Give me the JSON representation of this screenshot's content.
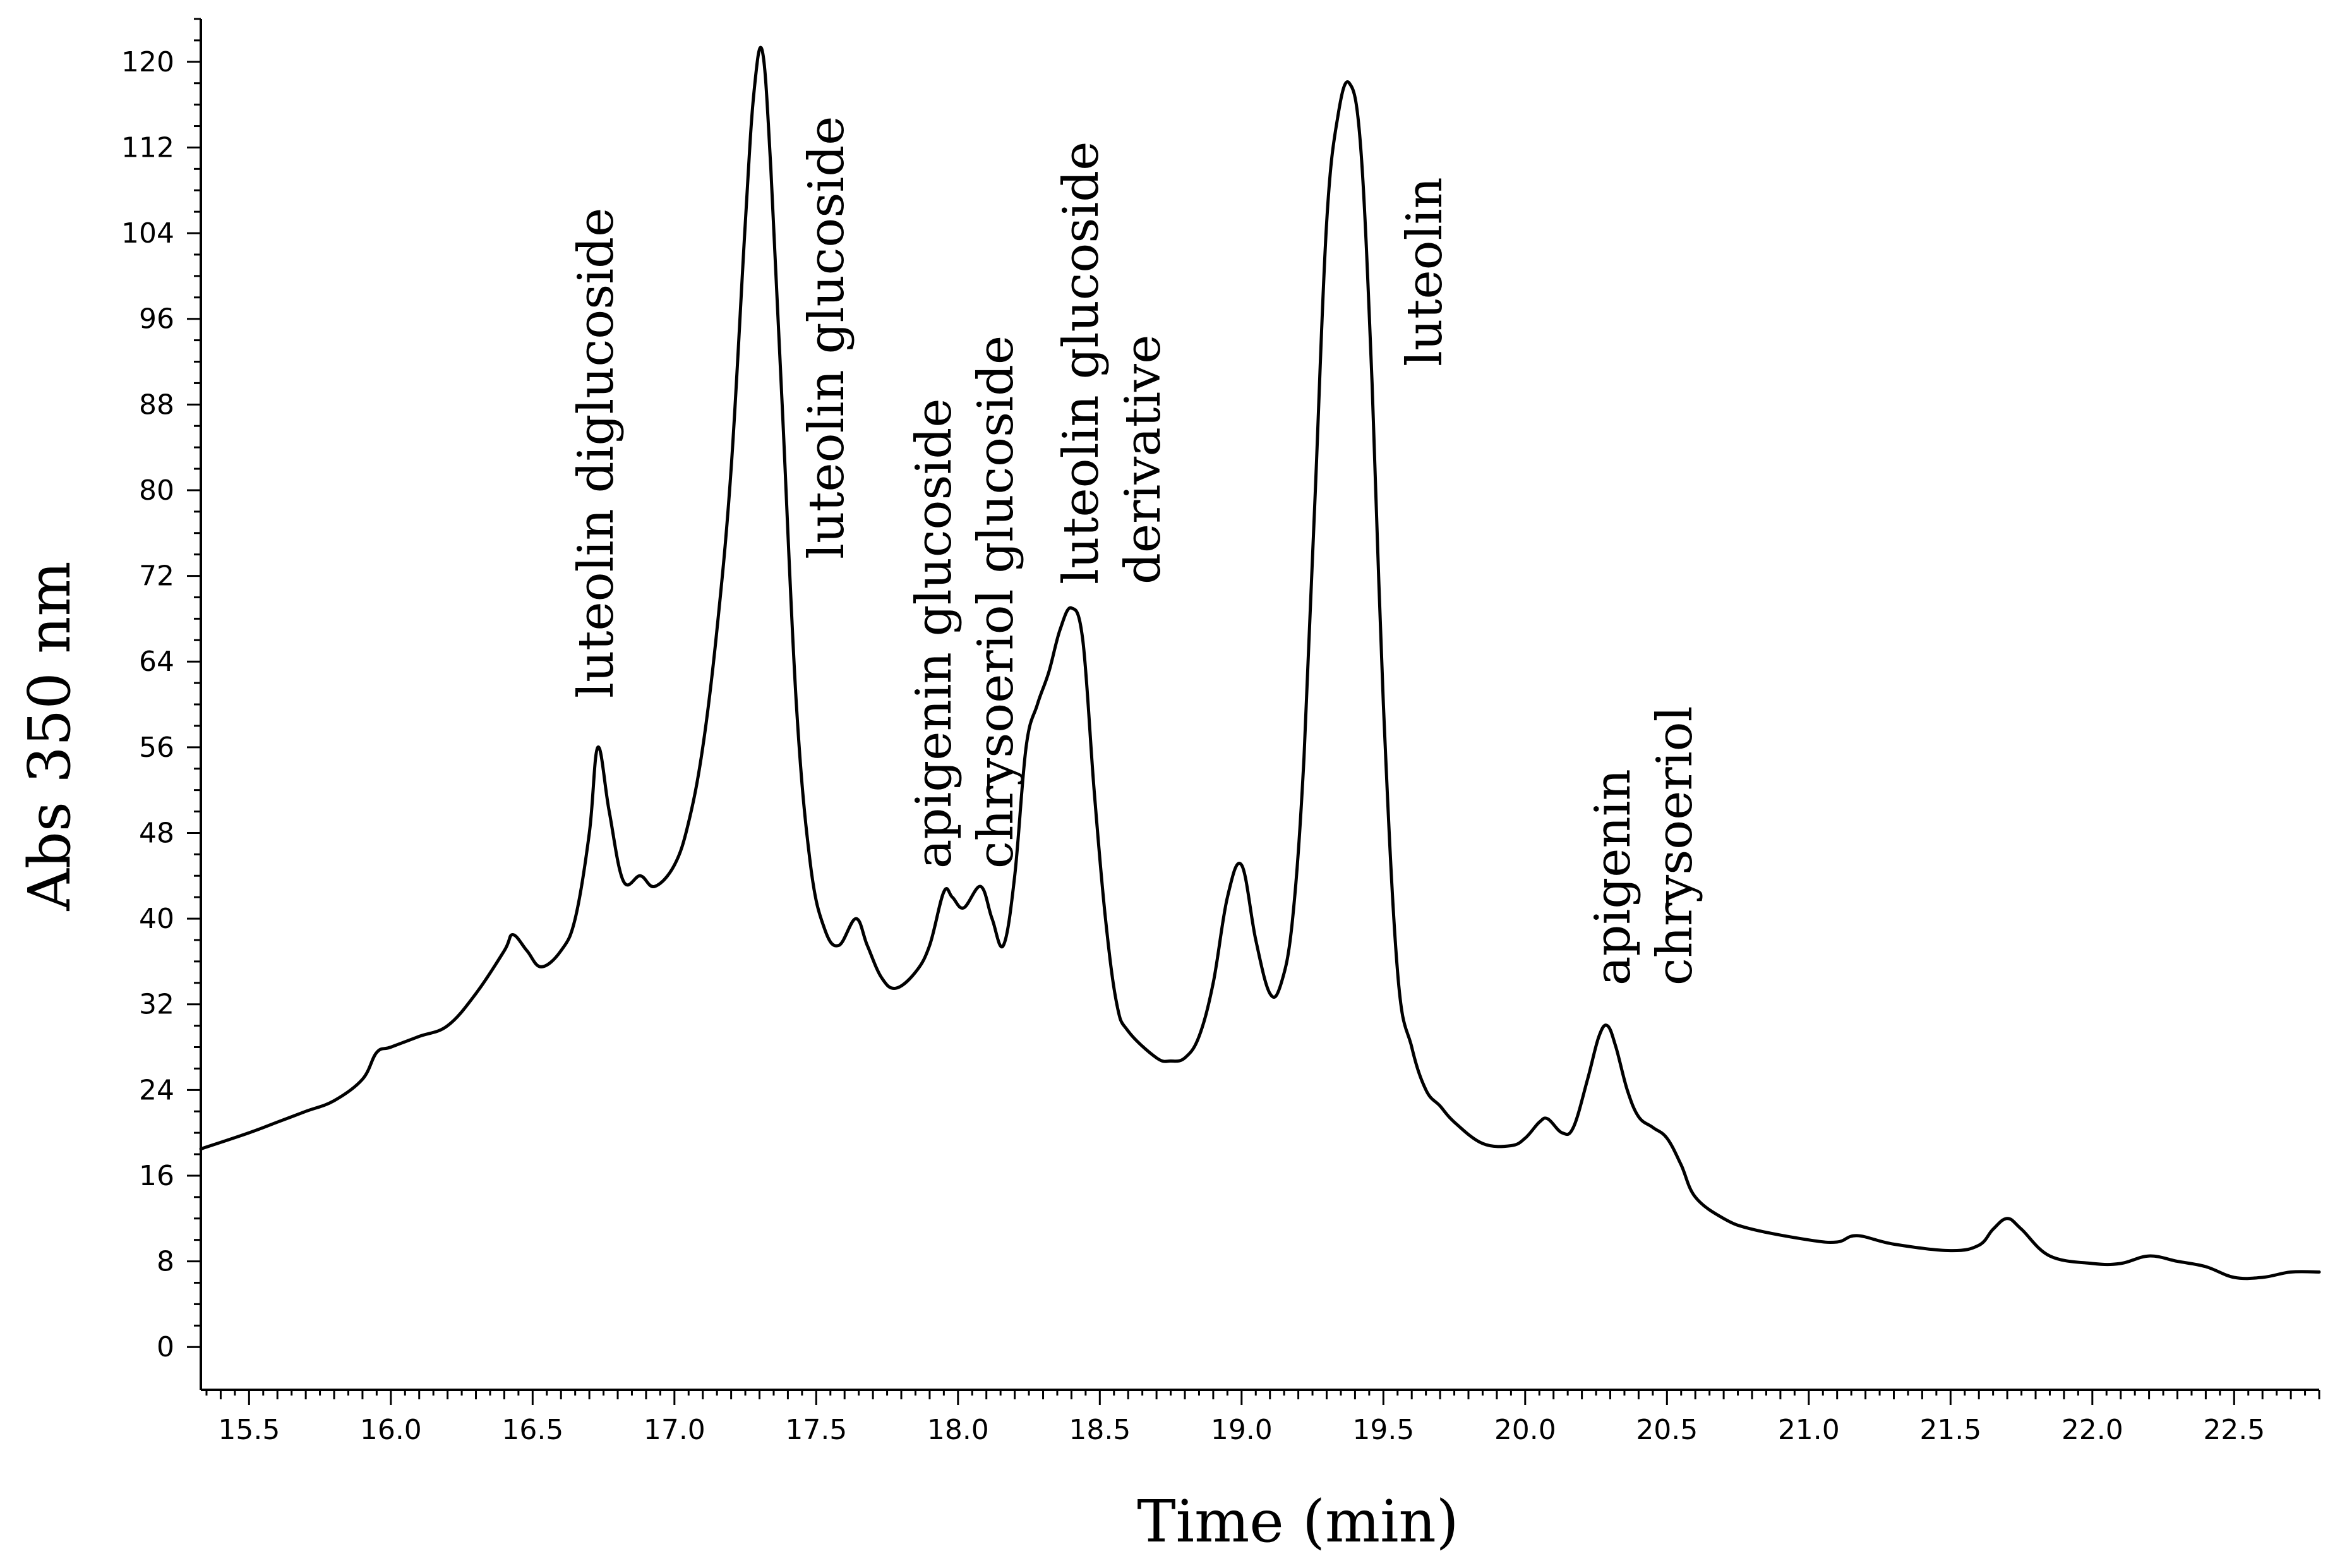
{
  "chart_data": {
    "type": "line",
    "title": "",
    "xlabel": "Time (min)",
    "ylabel": "Abs 350 nm",
    "xlim": [
      15.33,
      22.8
    ],
    "ylim": [
      -4,
      124
    ],
    "x_ticks": [
      15.5,
      16.0,
      16.5,
      17.0,
      17.5,
      18.0,
      18.5,
      19.0,
      19.5,
      20.0,
      20.5,
      21.0,
      21.5,
      22.0,
      22.5
    ],
    "x_tick_labels": [
      "15.5",
      "16.0",
      "16.5",
      "17.0",
      "17.5",
      "18.0",
      "18.5",
      "19.0",
      "19.5",
      "20.0",
      "20.5",
      "21.0",
      "21.5",
      "22.0",
      "22.5"
    ],
    "y_ticks": [
      0,
      8,
      16,
      24,
      32,
      40,
      48,
      56,
      64,
      72,
      80,
      88,
      96,
      104,
      112,
      120
    ],
    "y_tick_labels": [
      "0",
      "8",
      "16",
      "24",
      "32",
      "40",
      "48",
      "56",
      "64",
      "72",
      "80",
      "88",
      "96",
      "104",
      "112",
      "120"
    ],
    "grid": false,
    "series": [
      {
        "name": "Abs 350 nm",
        "x": [
          15.33,
          15.5,
          15.6,
          15.7,
          15.8,
          15.9,
          15.95,
          16.0,
          16.1,
          16.2,
          16.3,
          16.4,
          16.43,
          16.48,
          16.53,
          16.6,
          16.65,
          16.7,
          16.73,
          16.77,
          16.82,
          16.88,
          16.93,
          17.0,
          17.05,
          17.1,
          17.15,
          17.2,
          17.25,
          17.28,
          17.31,
          17.34,
          17.38,
          17.43,
          17.48,
          17.53,
          17.58,
          17.64,
          17.68,
          17.73,
          17.78,
          17.85,
          17.9,
          17.95,
          17.98,
          18.02,
          18.08,
          18.12,
          18.16,
          18.2,
          18.24,
          18.28,
          18.32,
          18.36,
          18.4,
          18.44,
          18.48,
          18.52,
          18.56,
          18.6,
          18.7,
          18.75,
          18.8,
          18.85,
          18.9,
          18.95,
          19.0,
          19.05,
          19.1,
          19.14,
          19.18,
          19.22,
          19.26,
          19.3,
          19.34,
          19.38,
          19.42,
          19.46,
          19.5,
          19.55,
          19.6,
          19.65,
          19.7,
          19.75,
          19.85,
          19.95,
          20.0,
          20.05,
          20.08,
          20.13,
          20.17,
          20.22,
          20.26,
          20.29,
          20.32,
          20.36,
          20.4,
          20.45,
          20.5,
          20.55,
          20.6,
          20.7,
          20.8,
          21.0,
          21.1,
          21.17,
          21.3,
          21.5,
          21.6,
          21.65,
          21.7,
          21.75,
          21.85,
          22.0,
          22.1,
          22.2,
          22.3,
          22.4,
          22.5,
          22.6,
          22.7,
          22.8
        ],
        "y": [
          18.5,
          20.0,
          21.0,
          22.0,
          23.0,
          25.0,
          27.5,
          28.0,
          29.0,
          30.0,
          33.0,
          37.0,
          38.5,
          37.0,
          35.5,
          37.0,
          40.0,
          48.0,
          56.0,
          50.0,
          43.5,
          44.0,
          43.0,
          45.0,
          49.0,
          56.0,
          67.0,
          82.0,
          105.0,
          117.0,
          121.0,
          110.0,
          88.0,
          60.0,
          45.0,
          39.0,
          37.5,
          40.0,
          37.5,
          34.5,
          33.5,
          35.0,
          37.5,
          42.5,
          42.0,
          41.0,
          43.0,
          40.0,
          37.5,
          44.0,
          56.0,
          60.0,
          63.0,
          67.0,
          69.0,
          66.0,
          52.0,
          40.0,
          32.0,
          29.5,
          27.0,
          26.7,
          27.0,
          29.0,
          34.0,
          42.0,
          45.0,
          38.0,
          33.0,
          34.0,
          40.0,
          55.0,
          80.0,
          105.0,
          115.0,
          118.0,
          112.0,
          90.0,
          60.0,
          35.0,
          28.0,
          24.0,
          22.5,
          21.0,
          19.0,
          18.8,
          19.5,
          21.0,
          21.3,
          20.0,
          20.5,
          25.0,
          29.0,
          30.0,
          28.0,
          24.0,
          21.5,
          20.5,
          19.5,
          17.0,
          14.0,
          12.0,
          11.0,
          10.0,
          9.8,
          10.4,
          9.6,
          9.0,
          9.5,
          11.0,
          12.0,
          11.0,
          8.5,
          7.8,
          7.8,
          8.5,
          8.0,
          7.5,
          6.5,
          6.5,
          7.0,
          7.0
        ]
      }
    ],
    "annotations": [
      {
        "lines": [
          "luteolin diglucoside"
        ],
        "x": 16.73
      },
      {
        "lines": [
          "luteolin glucoside"
        ],
        "x": 17.31
      },
      {
        "lines": [
          "apigenin glucoside",
          "chrysoeriol glucoside"
        ],
        "x": 18.02
      },
      {
        "lines": [
          "luteolin glucoside",
          "derivative"
        ],
        "x": 18.44
      },
      {
        "lines": [
          "luteolin"
        ],
        "x": 19.42
      },
      {
        "lines": [
          "apigenin",
          "chrysoeriol"
        ],
        "x": 20.32
      }
    ]
  }
}
